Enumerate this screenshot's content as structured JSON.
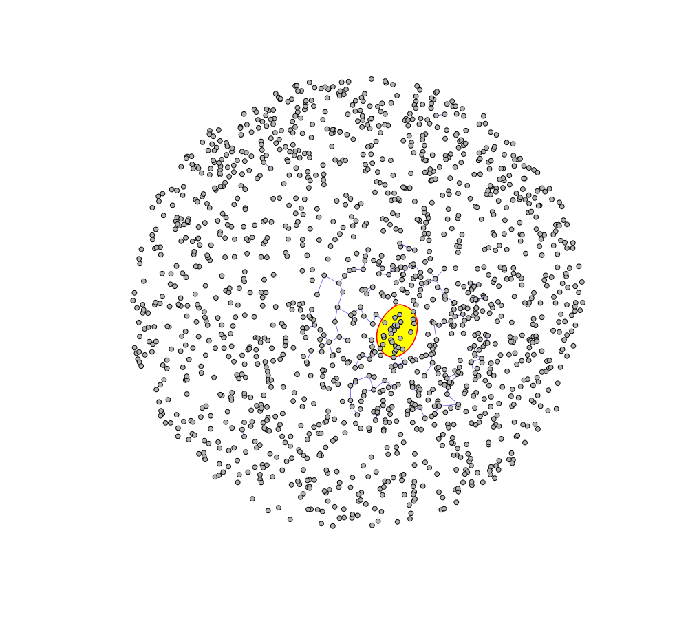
{
  "graph": {
    "node_count": 1500,
    "core_node_count": 20,
    "cluster_node_count": 160,
    "periphery_node_count": 1320,
    "random_seed": 7,
    "colors": {
      "background": "#ffffff",
      "node_fill": "#b4b4b4",
      "node_stroke": "#000000",
      "edge": "#3d3df0",
      "hull_fill": "#ffff00",
      "hull_stroke": "#ff0000"
    }
  }
}
